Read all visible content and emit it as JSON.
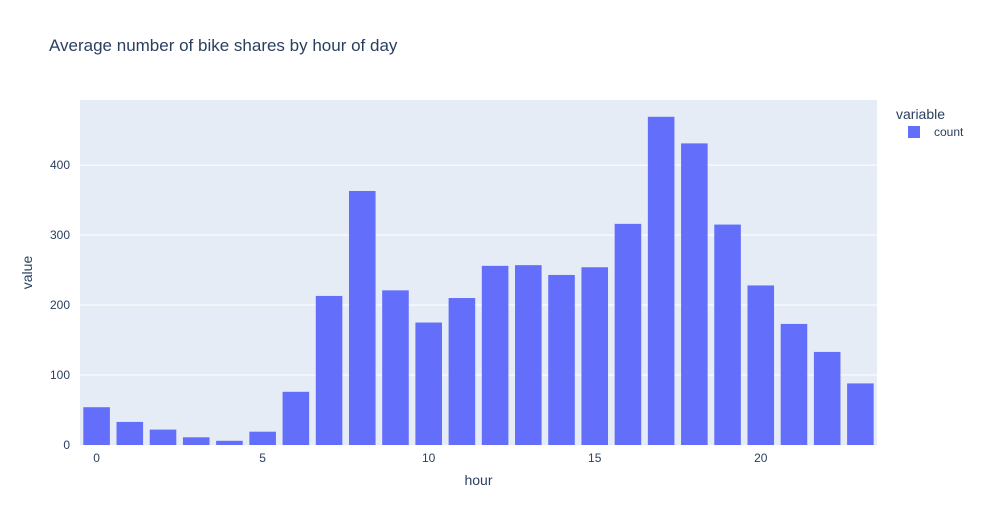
{
  "chart_data": {
    "type": "bar",
    "title": "Average number of bike shares by hour of day",
    "xlabel": "hour",
    "ylabel": "value",
    "x": [
      0,
      1,
      2,
      3,
      4,
      5,
      6,
      7,
      8,
      9,
      10,
      11,
      12,
      13,
      14,
      15,
      16,
      17,
      18,
      19,
      20,
      21,
      22,
      23
    ],
    "series": [
      {
        "name": "count",
        "color": "#636efa",
        "values": [
          54,
          33,
          22,
          11,
          6,
          19,
          76,
          213,
          363,
          221,
          175,
          210,
          256,
          257,
          243,
          254,
          316,
          469,
          431,
          315,
          228,
          173,
          133,
          88
        ]
      }
    ],
    "xlim": [
      -0.5,
      23.5
    ],
    "ylim": [
      0,
      493
    ],
    "x_ticks": [
      "0",
      "5",
      "10",
      "15",
      "20"
    ],
    "y_ticks": [
      "0",
      "100",
      "200",
      "300",
      "400"
    ],
    "grid": true,
    "legend": {
      "title": "variable",
      "position": "right"
    },
    "colors": {
      "plot_background": "#e5ecf6",
      "grid": "#ffffff",
      "text": "#2a3f5f"
    }
  }
}
